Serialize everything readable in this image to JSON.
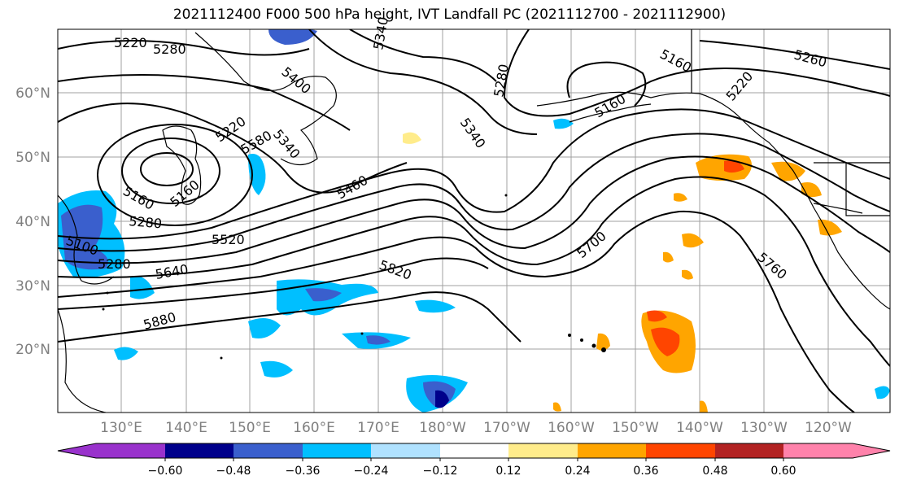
{
  "title": "2021112400 F000 500 hPa height, IVT Landfall PC (2021112700 - 2021112900)",
  "lat_labels": [
    "60°N",
    "50°N",
    "40°N",
    "30°N",
    "20°N"
  ],
  "lon_labels": [
    "130°E",
    "140°E",
    "150°E",
    "160°E",
    "170°E",
    "180°W",
    "170°W",
    "160°W",
    "150°W",
    "140°W",
    "130°W",
    "120°W"
  ],
  "contour_labels": [
    "5220",
    "5280",
    "5400",
    "5160",
    "5280",
    "5340",
    "5160",
    "5260",
    "5220",
    "5280",
    "5340",
    "5220",
    "5160",
    "5340",
    "5460",
    "5160",
    "5100",
    "5280",
    "5520",
    "5580",
    "5640",
    "5820",
    "5700",
    "5760",
    "5880"
  ],
  "colorbar": {
    "ticks": [
      "−0.60",
      "−0.48",
      "−0.36",
      "−0.24",
      "−0.12",
      "0.12",
      "0.24",
      "0.36",
      "0.48",
      "0.60"
    ],
    "colors": [
      "#9932cc",
      "#00008b",
      "#3a5fcd",
      "#00bfff",
      "#b0e2ff",
      "#ffffff",
      "#ffec8b",
      "#ffa500",
      "#ff4500",
      "#b22222",
      "#ff82ab"
    ]
  }
}
